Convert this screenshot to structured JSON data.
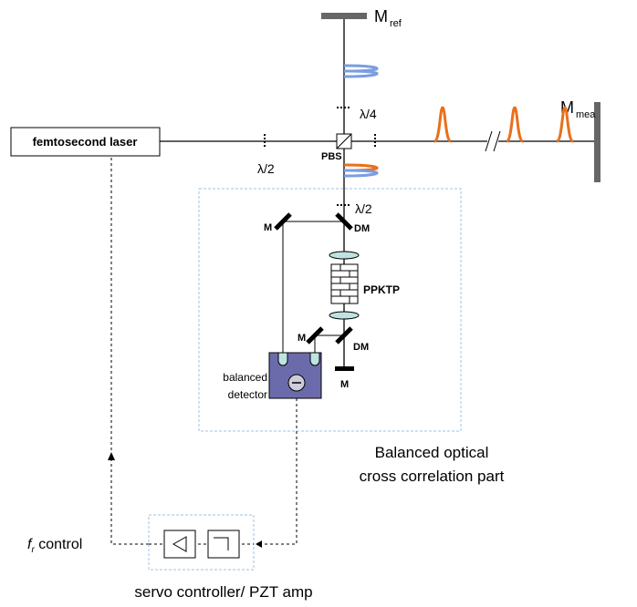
{
  "mirror_ref": {
    "main": "M",
    "sub": "ref"
  },
  "mirror_mea": {
    "main": "M",
    "sub": "mea"
  },
  "laser": "femtosecond laser",
  "waveplate_quarter": "λ/4",
  "waveplate_half_left": "λ/2",
  "waveplate_half_bottom": "λ/2",
  "pbs": "PBS",
  "mirror_top": "M",
  "dichroic_top": "DM",
  "crystal": "PPKTP",
  "mirror_mid": "M",
  "dichroic_bottom": "DM",
  "mirror_bottom": "M",
  "detector": [
    "balanced",
    "detector"
  ],
  "bocc_part": [
    "Balanced optical",
    "cross correlation part"
  ],
  "control": {
    "main": "f",
    "sub": "r",
    "rest": " control"
  },
  "servo": "servo controller/ PZT amp"
}
